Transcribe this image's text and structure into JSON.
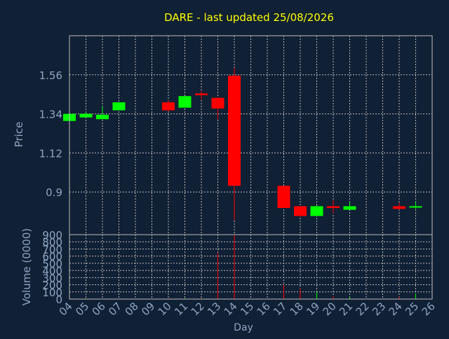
{
  "chart_data": {
    "type": "candlestick",
    "title": "DARE - last updated 25/08/2026",
    "xlabel": "Day",
    "ylabel": "Price",
    "volume_label": "Volume (0000)",
    "grid": true,
    "price_ylim": [
      0.66,
      1.78
    ],
    "price_ticks": [
      "1.56",
      "1.34",
      "1.12",
      "0.9"
    ],
    "volume_ylim": [
      0,
      900
    ],
    "volume_ticks": [
      "900",
      "800",
      "700",
      "600",
      "500",
      "400",
      "300",
      "200",
      "100",
      "0"
    ],
    "x_ticks": [
      "04",
      "05",
      "06",
      "07",
      "08",
      "09",
      "10",
      "11",
      "12",
      "13",
      "14",
      "15",
      "16",
      "17",
      "18",
      "19",
      "20",
      "21",
      "22",
      "23",
      "24",
      "25",
      "26"
    ],
    "colors": {
      "up": "#00ff00",
      "down": "#ff0000",
      "title": "#ffff00",
      "axis_text": "#8fa5c0",
      "grid": "#bbbbbb"
    },
    "candles": [
      {
        "x": "04",
        "open": 1.3,
        "high": 1.34,
        "low": 1.3,
        "close": 1.34,
        "volume": 10
      },
      {
        "x": "05",
        "open": 1.32,
        "high": 1.35,
        "low": 1.32,
        "close": 1.34,
        "volume": 8
      },
      {
        "x": "06",
        "open": 1.31,
        "high": 1.38,
        "low": 1.31,
        "close": 1.335,
        "volume": 6
      },
      {
        "x": "07",
        "open": 1.36,
        "high": 1.4,
        "low": 1.36,
        "close": 1.405,
        "volume": 5
      },
      {
        "x": "10",
        "open": 1.405,
        "high": 1.415,
        "low": 1.355,
        "close": 1.36,
        "volume": 10
      },
      {
        "x": "11",
        "open": 1.375,
        "high": 1.44,
        "low": 1.375,
        "close": 1.44,
        "volume": 12
      },
      {
        "x": "12",
        "open": 1.455,
        "high": 1.47,
        "low": 1.42,
        "close": 1.445,
        "volume": 15
      },
      {
        "x": "13",
        "open": 1.43,
        "high": 1.435,
        "low": 1.31,
        "close": 1.37,
        "volume": 650
      },
      {
        "x": "14",
        "open": 1.555,
        "high": 1.6,
        "low": 0.74,
        "close": 0.935,
        "volume": 900
      },
      {
        "x": "17",
        "open": 0.935,
        "high": 0.935,
        "low": 0.81,
        "close": 0.81,
        "volume": 200
      },
      {
        "x": "18",
        "open": 0.82,
        "high": 0.82,
        "low": 0.76,
        "close": 0.765,
        "volume": 150
      },
      {
        "x": "19",
        "open": 0.765,
        "high": 0.825,
        "low": 0.765,
        "close": 0.82,
        "volume": 100
      },
      {
        "x": "20",
        "open": 0.82,
        "high": 0.855,
        "low": 0.78,
        "close": 0.81,
        "volume": 40
      },
      {
        "x": "21",
        "open": 0.8,
        "high": 0.845,
        "low": 0.8,
        "close": 0.82,
        "volume": 30
      },
      {
        "x": "24",
        "open": 0.82,
        "high": 0.84,
        "low": 0.8,
        "close": 0.805,
        "volume": 30
      },
      {
        "x": "25",
        "open": 0.815,
        "high": 0.845,
        "low": 0.805,
        "close": 0.82,
        "volume": 80
      }
    ]
  }
}
